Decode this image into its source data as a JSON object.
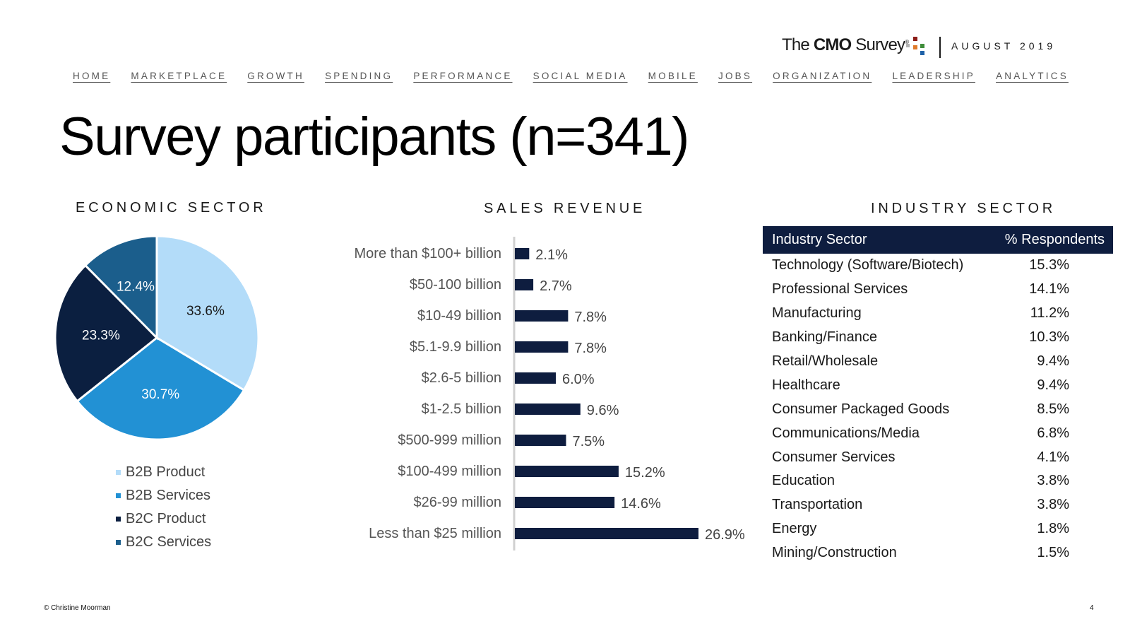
{
  "header": {
    "brand_prefix": "The ",
    "brand_bold": "CMO",
    "brand_suffix": " Survey",
    "brand_mark": "®",
    "date": "AUGUST 2019"
  },
  "nav": [
    "HOME",
    "MARKETPLACE",
    "GROWTH",
    "SPENDING",
    "PERFORMANCE",
    "SOCIAL MEDIA",
    "MOBILE",
    "JOBS",
    "ORGANIZATION",
    "LEADERSHIP",
    "ANALYTICS"
  ],
  "page_title": "Survey participants (n=341)",
  "footer": {
    "copyright": "© Christine Moorman",
    "page_number": "4"
  },
  "colors": {
    "navy": "#0e1d3f",
    "b2b_product": "#b3dcf9",
    "b2b_services": "#2291d4",
    "b2c_product": "#0b1f40",
    "b2c_services": "#1b5e8c"
  },
  "chart_data": [
    {
      "type": "pie",
      "title": "ECONOMIC SECTOR",
      "categories": [
        "B2B Product",
        "B2B Services",
        "B2C Product",
        "B2C Services"
      ],
      "values": [
        33.6,
        30.7,
        23.3,
        12.4
      ],
      "labels": [
        "33.6%",
        "30.7%",
        "23.3%",
        "12.4%"
      ],
      "colors": [
        "#b3dcf9",
        "#2291d4",
        "#0b1f40",
        "#1b5e8c"
      ],
      "label_colors": [
        "#1a1a1a",
        "#ffffff",
        "#ffffff",
        "#ffffff"
      ],
      "legend": "bottom"
    },
    {
      "type": "bar",
      "orientation": "horizontal",
      "title": "SALES REVENUE",
      "categories": [
        "More than $100+ billion",
        "$50-100 billion",
        "$10-49 billion",
        "$5.1-9.9 billion",
        "$2.6-5 billion",
        "$1-2.5 billion",
        "$500-999 million",
        "$100-499 million",
        "$26-99 million",
        "Less than $25 million"
      ],
      "values": [
        2.1,
        2.7,
        7.8,
        7.8,
        6.0,
        9.6,
        7.5,
        15.2,
        14.6,
        26.9
      ],
      "labels": [
        "2.1%",
        "2.7%",
        "7.8%",
        "7.8%",
        "6.0%",
        "9.6%",
        "7.5%",
        "15.2%",
        "14.6%",
        "26.9%"
      ],
      "xlim": [
        0,
        30
      ],
      "grid": false
    },
    {
      "type": "table",
      "title": "INDUSTRY SECTOR",
      "columns": [
        "Industry Sector",
        "% Respondents"
      ],
      "rows": [
        [
          "Technology (Software/Biotech)",
          "15.3%"
        ],
        [
          "Professional Services",
          "14.1%"
        ],
        [
          "Manufacturing",
          "11.2%"
        ],
        [
          "Banking/Finance",
          "10.3%"
        ],
        [
          "Retail/Wholesale",
          "9.4%"
        ],
        [
          "Healthcare",
          "9.4%"
        ],
        [
          "Consumer Packaged Goods",
          "8.5%"
        ],
        [
          "Communications/Media",
          "6.8%"
        ],
        [
          "Consumer Services",
          "4.1%"
        ],
        [
          "Education",
          "3.8%"
        ],
        [
          "Transportation",
          "3.8%"
        ],
        [
          "Energy",
          "1.8%"
        ],
        [
          "Mining/Construction",
          "1.5%"
        ]
      ]
    }
  ]
}
